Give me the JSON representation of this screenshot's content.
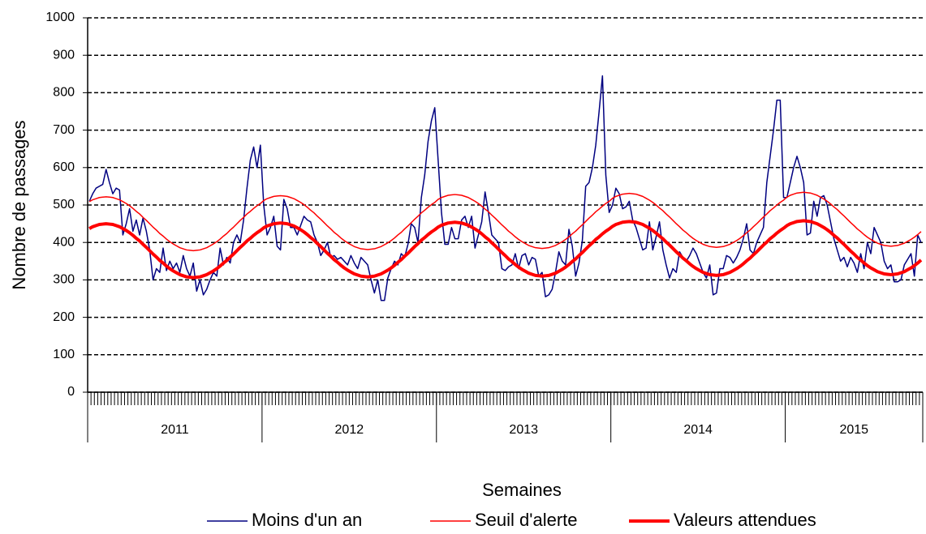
{
  "chart_data": {
    "type": "line",
    "y_label": "Nombre de passages",
    "x_label": "Semaines",
    "ylim": [
      0,
      1000
    ],
    "yticks": [
      0,
      100,
      200,
      300,
      400,
      500,
      600,
      700,
      800,
      900,
      1000
    ],
    "grid": true,
    "legend": "bottom",
    "categories": [
      "2011",
      null,
      null,
      null,
      null,
      null,
      null,
      null,
      null,
      null,
      null,
      null,
      null,
      null,
      null,
      null,
      null,
      null,
      null,
      null,
      null,
      null,
      null,
      null,
      null,
      null,
      null,
      null,
      null,
      null,
      null,
      null,
      null,
      null,
      null,
      null,
      null,
      null,
      null,
      null,
      null,
      null,
      null,
      null,
      null,
      null,
      null,
      null,
      null,
      null,
      null,
      null,
      "2012",
      null,
      null,
      null,
      null,
      null,
      null,
      null,
      null,
      null,
      null,
      null,
      null,
      null,
      null,
      null,
      null,
      null,
      null,
      null,
      null,
      null,
      null,
      null,
      null,
      null,
      null,
      null,
      null,
      null,
      null,
      null,
      null,
      null,
      null,
      null,
      null,
      null,
      null,
      null,
      null,
      null,
      null,
      null,
      null,
      null,
      null,
      null,
      null,
      null,
      null,
      null,
      "2013",
      null,
      null,
      null,
      null,
      null,
      null,
      null,
      null,
      null,
      null,
      null,
      null,
      null,
      null,
      null,
      null,
      null,
      null,
      null,
      null,
      null,
      null,
      null,
      null,
      null,
      null,
      null,
      null,
      null,
      null,
      null,
      null,
      null,
      null,
      null,
      null,
      null,
      null,
      null,
      null,
      null,
      null,
      null,
      null,
      null,
      null,
      null,
      null,
      null,
      null,
      null,
      "2014",
      null,
      null,
      null,
      null,
      null,
      null,
      null,
      null,
      null,
      null,
      null,
      null,
      null,
      null,
      null,
      null,
      null,
      null,
      null,
      null,
      null,
      null,
      null,
      null,
      null,
      null,
      null,
      null,
      null,
      null,
      null,
      null,
      null,
      null,
      null,
      null,
      null,
      null,
      null,
      null,
      null,
      null,
      null,
      null,
      null,
      null,
      null,
      null,
      null,
      null,
      null,
      "2015",
      null,
      null,
      null,
      null,
      null,
      null,
      null,
      null,
      null,
      null,
      null,
      null,
      null,
      null,
      null,
      null,
      null,
      null,
      null,
      null,
      null,
      null,
      null,
      null,
      null,
      null,
      null,
      null,
      null,
      null,
      null,
      null,
      null,
      null,
      null,
      null,
      null,
      null,
      null,
      null
    ],
    "series": [
      {
        "name": "Moins d'un an",
        "color": "#000080",
        "line_width": 1.5,
        "values": [
          510,
          530,
          545,
          550,
          555,
          595,
          560,
          530,
          545,
          540,
          420,
          450,
          490,
          430,
          460,
          420,
          465,
          430,
          380,
          300,
          330,
          320,
          385,
          325,
          350,
          330,
          345,
          320,
          365,
          330,
          310,
          345,
          270,
          300,
          260,
          275,
          300,
          320,
          310,
          385,
          340,
          360,
          345,
          400,
          420,
          400,
          460,
          545,
          620,
          655,
          600,
          660,
          500,
          420,
          440,
          470,
          390,
          380,
          515,
          490,
          440,
          440,
          420,
          445,
          470,
          460,
          455,
          420,
          400,
          365,
          380,
          400,
          360,
          365,
          355,
          360,
          350,
          340,
          365,
          345,
          330,
          360,
          350,
          340,
          300,
          265,
          300,
          245,
          245,
          305,
          330,
          350,
          340,
          370,
          360,
          395,
          450,
          440,
          400,
          520,
          580,
          670,
          725,
          760,
          620,
          480,
          395,
          395,
          440,
          410,
          410,
          460,
          470,
          440,
          470,
          385,
          420,
          455,
          535,
          480,
          420,
          410,
          400,
          330,
          325,
          335,
          340,
          370,
          330,
          365,
          370,
          340,
          360,
          355,
          310,
          320,
          255,
          260,
          275,
          320,
          375,
          350,
          340,
          435,
          390,
          310,
          345,
          405,
          550,
          560,
          600,
          660,
          750,
          845,
          580,
          480,
          500,
          545,
          530,
          490,
          495,
          510,
          460,
          440,
          410,
          380,
          385,
          455,
          380,
          415,
          455,
          380,
          340,
          305,
          330,
          320,
          375,
          360,
          350,
          365,
          385,
          370,
          345,
          320,
          305,
          340,
          260,
          265,
          330,
          330,
          365,
          360,
          345,
          360,
          380,
          410,
          450,
          380,
          370,
          400,
          420,
          440,
          560,
          630,
          700,
          780,
          780,
          520,
          520,
          560,
          600,
          630,
          600,
          560,
          420,
          425,
          510,
          470,
          520,
          525,
          500,
          455,
          410,
          380,
          350,
          360,
          335,
          360,
          345,
          320,
          370,
          330,
          400,
          370,
          440,
          420,
          400,
          350,
          330,
          340,
          295,
          295,
          300,
          340,
          355,
          370,
          310,
          420,
          400
        ]
      },
      {
        "name": "Seuil d'alerte",
        "color": "#ff0000",
        "line_width": 1.5,
        "values": [
          509,
          514,
          517,
          520,
          521,
          522,
          521,
          520,
          517,
          514,
          509,
          504,
          498,
          491,
          483,
          476,
          467,
          459,
          450,
          441,
          433,
          424,
          417,
          409,
          402,
          396,
          391,
          386,
          383,
          380,
          379,
          378,
          379,
          380,
          383,
          386,
          391,
          396,
          402,
          409,
          417,
          424,
          433,
          441,
          450,
          459,
          467,
          476,
          483,
          491,
          498,
          504,
          512,
          517,
          520,
          523,
          524,
          525,
          524,
          523,
          520,
          517,
          512,
          507,
          501,
          494,
          486,
          479,
          470,
          462,
          453,
          444,
          436,
          427,
          420,
          412,
          405,
          399,
          394,
          389,
          386,
          383,
          382,
          381,
          382,
          383,
          386,
          389,
          394,
          399,
          405,
          412,
          420,
          427,
          436,
          444,
          453,
          462,
          470,
          479,
          486,
          494,
          501,
          507,
          515,
          520,
          523,
          526,
          527,
          528,
          527,
          526,
          523,
          520,
          515,
          510,
          504,
          497,
          489,
          482,
          473,
          465,
          456,
          447,
          439,
          430,
          423,
          415,
          408,
          402,
          397,
          392,
          389,
          386,
          385,
          384,
          385,
          386,
          389,
          392,
          397,
          402,
          408,
          415,
          423,
          430,
          439,
          447,
          456,
          465,
          473,
          482,
          489,
          497,
          504,
          510,
          518,
          523,
          526,
          529,
          530,
          531,
          530,
          529,
          526,
          523,
          518,
          513,
          507,
          500,
          492,
          485,
          476,
          468,
          459,
          450,
          442,
          433,
          426,
          418,
          411,
          405,
          400,
          395,
          392,
          389,
          388,
          387,
          388,
          389,
          392,
          395,
          400,
          405,
          411,
          418,
          426,
          433,
          442,
          450,
          459,
          468,
          476,
          485,
          492,
          500,
          507,
          513,
          521,
          526,
          529,
          532,
          533,
          534,
          533,
          532,
          529,
          526,
          521,
          516,
          510,
          503,
          495,
          488,
          479,
          471,
          462,
          453,
          445,
          436,
          429,
          421,
          414,
          408,
          403,
          398,
          395,
          392,
          391,
          390,
          391,
          392,
          395,
          398,
          403,
          408,
          414,
          421,
          429
        ]
      },
      {
        "name": "Valeurs attendues",
        "color": "#ff0000",
        "line_width": 4,
        "values": [
          437,
          442,
          445,
          448,
          449,
          450,
          449,
          448,
          445,
          442,
          437,
          432,
          426,
          419,
          411,
          404,
          395,
          387,
          378,
          369,
          361,
          352,
          345,
          337,
          330,
          324,
          319,
          314,
          311,
          308,
          307,
          306,
          307,
          308,
          311,
          314,
          319,
          324,
          330,
          337,
          345,
          352,
          361,
          369,
          378,
          387,
          395,
          404,
          411,
          419,
          426,
          432,
          439,
          444,
          447,
          450,
          451,
          452,
          451,
          450,
          447,
          444,
          439,
          434,
          428,
          421,
          413,
          406,
          397,
          389,
          380,
          371,
          363,
          354,
          347,
          339,
          332,
          326,
          321,
          316,
          313,
          310,
          309,
          308,
          309,
          310,
          313,
          316,
          321,
          326,
          332,
          339,
          347,
          354,
          363,
          371,
          380,
          389,
          397,
          406,
          413,
          421,
          428,
          434,
          441,
          446,
          449,
          452,
          453,
          454,
          453,
          452,
          449,
          446,
          441,
          436,
          430,
          423,
          415,
          408,
          399,
          391,
          382,
          373,
          365,
          356,
          349,
          341,
          334,
          328,
          323,
          318,
          315,
          312,
          311,
          310,
          311,
          312,
          315,
          318,
          323,
          328,
          334,
          341,
          349,
          356,
          365,
          373,
          382,
          391,
          399,
          408,
          415,
          423,
          430,
          436,
          443,
          448,
          451,
          454,
          455,
          456,
          455,
          454,
          451,
          448,
          443,
          438,
          432,
          425,
          417,
          410,
          401,
          393,
          384,
          375,
          367,
          358,
          351,
          343,
          336,
          330,
          325,
          320,
          317,
          314,
          313,
          312,
          313,
          314,
          317,
          320,
          325,
          330,
          336,
          343,
          351,
          358,
          367,
          375,
          384,
          393,
          401,
          410,
          417,
          425,
          432,
          438,
          445,
          450,
          453,
          456,
          457,
          458,
          457,
          456,
          453,
          450,
          445,
          440,
          434,
          427,
          419,
          412,
          403,
          395,
          386,
          377,
          369,
          360,
          353,
          345,
          338,
          332,
          327,
          322,
          319,
          316,
          315,
          314,
          315,
          316,
          319,
          322,
          327,
          332,
          338,
          345,
          353
        ]
      }
    ]
  }
}
